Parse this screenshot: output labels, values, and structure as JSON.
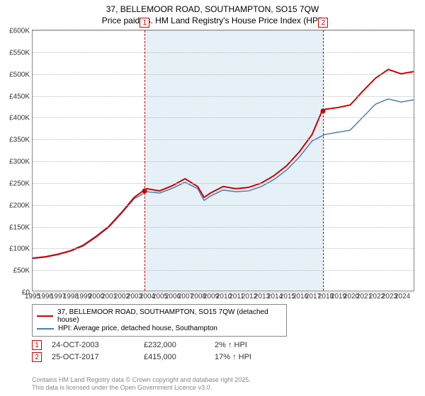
{
  "title_line1": "37, BELLEMOOR ROAD, SOUTHAMPTON, SO15 7QW",
  "title_line2": "Price paid vs. HM Land Registry's House Price Index (HPI)",
  "chart": {
    "type": "line",
    "x_years": [
      1995,
      1996,
      1997,
      1998,
      1999,
      2000,
      2001,
      2002,
      2003,
      2004,
      2005,
      2006,
      2007,
      2008,
      2009,
      2010,
      2011,
      2012,
      2013,
      2014,
      2015,
      2016,
      2017,
      2018,
      2019,
      2020,
      2021,
      2022,
      2023,
      2024
    ],
    "x_min": 1995,
    "x_max": 2025,
    "y_min": 0,
    "y_max": 600000,
    "y_ticks": [
      0,
      50000,
      100000,
      150000,
      200000,
      250000,
      300000,
      350000,
      400000,
      450000,
      500000,
      550000,
      600000
    ],
    "y_tick_labels": [
      "£0",
      "£50K",
      "£100K",
      "£150K",
      "£200K",
      "£250K",
      "£300K",
      "£350K",
      "£400K",
      "£450K",
      "£500K",
      "£550K",
      "£600K"
    ],
    "shade_start_year": 2003.8,
    "shade_end_year": 2017.8,
    "background_color": "#ffffff",
    "grid_color": "#bbbbbb",
    "shade_color": "#b8d4e8",
    "series": [
      {
        "name": "price_paid",
        "color": "#cc0000",
        "width": 2,
        "points": [
          [
            1995,
            75000
          ],
          [
            1996,
            78000
          ],
          [
            1997,
            84000
          ],
          [
            1998,
            92000
          ],
          [
            1999,
            105000
          ],
          [
            2000,
            125000
          ],
          [
            2001,
            148000
          ],
          [
            2002,
            180000
          ],
          [
            2003,
            215000
          ],
          [
            2003.8,
            232000
          ],
          [
            2004,
            235000
          ],
          [
            2005,
            230000
          ],
          [
            2006,
            242000
          ],
          [
            2007,
            258000
          ],
          [
            2008,
            240000
          ],
          [
            2008.5,
            215000
          ],
          [
            2009,
            225000
          ],
          [
            2010,
            240000
          ],
          [
            2011,
            235000
          ],
          [
            2012,
            238000
          ],
          [
            2013,
            248000
          ],
          [
            2014,
            265000
          ],
          [
            2015,
            288000
          ],
          [
            2016,
            320000
          ],
          [
            2017,
            360000
          ],
          [
            2017.8,
            415000
          ],
          [
            2018,
            418000
          ],
          [
            2019,
            422000
          ],
          [
            2020,
            428000
          ],
          [
            2021,
            460000
          ],
          [
            2022,
            490000
          ],
          [
            2023,
            510000
          ],
          [
            2024,
            500000
          ],
          [
            2025,
            505000
          ]
        ]
      },
      {
        "name": "hpi",
        "color": "#4a7fb0",
        "width": 1.5,
        "points": [
          [
            1995,
            74000
          ],
          [
            1996,
            77000
          ],
          [
            1997,
            83000
          ],
          [
            1998,
            91000
          ],
          [
            1999,
            103000
          ],
          [
            2000,
            123000
          ],
          [
            2001,
            146000
          ],
          [
            2002,
            178000
          ],
          [
            2003,
            212000
          ],
          [
            2004,
            228000
          ],
          [
            2005,
            225000
          ],
          [
            2006,
            236000
          ],
          [
            2007,
            250000
          ],
          [
            2008,
            235000
          ],
          [
            2008.5,
            208000
          ],
          [
            2009,
            218000
          ],
          [
            2010,
            232000
          ],
          [
            2011,
            228000
          ],
          [
            2012,
            230000
          ],
          [
            2013,
            240000
          ],
          [
            2014,
            256000
          ],
          [
            2015,
            278000
          ],
          [
            2016,
            308000
          ],
          [
            2017,
            345000
          ],
          [
            2018,
            360000
          ],
          [
            2019,
            365000
          ],
          [
            2020,
            370000
          ],
          [
            2021,
            400000
          ],
          [
            2022,
            430000
          ],
          [
            2023,
            442000
          ],
          [
            2024,
            435000
          ],
          [
            2025,
            440000
          ]
        ]
      }
    ],
    "sale_markers": [
      {
        "num": "1",
        "year": 2003.8,
        "price": 232000
      },
      {
        "num": "2",
        "year": 2017.8,
        "price": 415000
      }
    ]
  },
  "legend": {
    "series1_label": "37, BELLEMOOR ROAD, SOUTHAMPTON, SO15 7QW (detached house)",
    "series1_color": "#cc0000",
    "series2_label": "HPI: Average price, detached house, Southampton",
    "series2_color": "#4a7fb0"
  },
  "sales": [
    {
      "num": "1",
      "date": "24-OCT-2003",
      "price": "£232,000",
      "pct": "2% ↑ HPI"
    },
    {
      "num": "2",
      "date": "25-OCT-2017",
      "price": "£415,000",
      "pct": "17% ↑ HPI"
    }
  ],
  "footer_line1": "Contains HM Land Registry data © Crown copyright and database right 2025.",
  "footer_line2": "This data is licensed under the Open Government Licence v3.0."
}
